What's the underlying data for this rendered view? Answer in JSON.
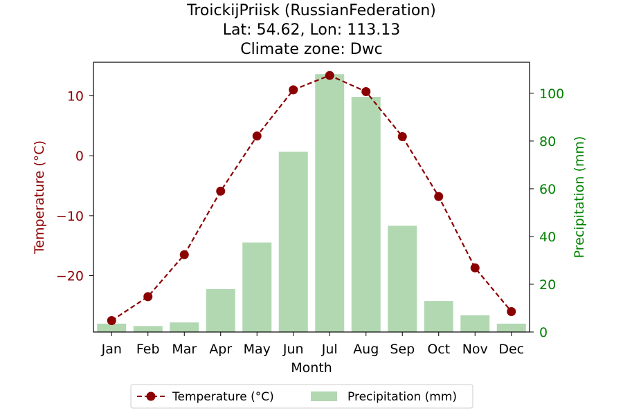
{
  "chart_data": {
    "type": "bar+line",
    "title_lines": [
      "TroickijPriisk (RussianFederation)",
      "Lat: 54.62, Lon: 113.13",
      "Climate zone: Dwc"
    ],
    "xlabel": "Month",
    "ylabel_left": "Temperature (°C)",
    "ylabel_right": "Precipitation (mm)",
    "categories": [
      "Jan",
      "Feb",
      "Mar",
      "Apr",
      "May",
      "Jun",
      "Jul",
      "Aug",
      "Sep",
      "Oct",
      "Nov",
      "Dec"
    ],
    "temperature": {
      "name": "Temperature (°C)",
      "color": "#8b0000",
      "values": [
        -27.5,
        -23.5,
        -16.5,
        -5.9,
        3.3,
        11.0,
        13.4,
        10.7,
        3.2,
        -6.8,
        -18.7,
        -26.0
      ],
      "ylim": [
        -29.4,
        15.6
      ],
      "ticks": [
        -20,
        -10,
        0,
        10
      ],
      "tick_labels": [
        "−20",
        "−10",
        "0",
        "10"
      ]
    },
    "precipitation": {
      "name": "Precipitation (mm)",
      "color": "#b2d8b2",
      "axis_color": "#008000",
      "values": [
        3.5,
        2.5,
        4.0,
        18.0,
        37.5,
        75.5,
        108.0,
        98.5,
        44.5,
        13.0,
        7.0,
        3.5
      ],
      "ylim": [
        0,
        113
      ],
      "ticks": [
        0,
        20,
        40,
        60,
        80,
        100
      ],
      "tick_labels": [
        "0",
        "20",
        "40",
        "60",
        "80",
        "100"
      ]
    },
    "legend": {
      "position": "bottom-center",
      "items": [
        "Temperature (°C)",
        "Precipitation (mm)"
      ]
    },
    "grid": false
  }
}
